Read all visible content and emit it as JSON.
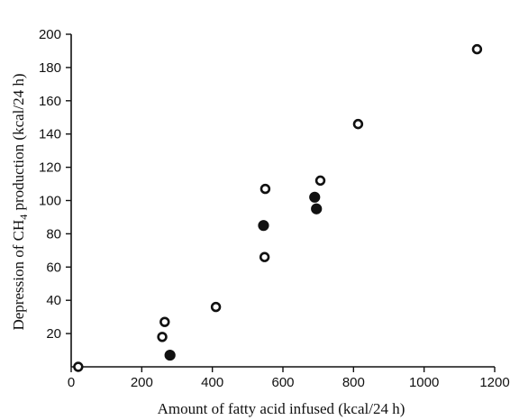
{
  "chart_data": {
    "type": "scatter",
    "title": "",
    "xlabel": "Amount of fatty acid infused (kcal/24 h)",
    "ylabel_parts": [
      "Depression of CH",
      "4",
      " production (kcal/24 h)"
    ],
    "xlim": [
      0,
      1200
    ],
    "ylim": [
      0,
      200
    ],
    "x_ticks": [
      0,
      200,
      400,
      600,
      800,
      1000,
      1200
    ],
    "y_ticks": [
      20,
      40,
      60,
      80,
      100,
      120,
      140,
      160,
      180,
      200
    ],
    "grid": false,
    "series": [
      {
        "marker": "open-circle",
        "points": [
          {
            "x": 20,
            "y": 0
          },
          {
            "x": 258,
            "y": 18
          },
          {
            "x": 265,
            "y": 27
          },
          {
            "x": 410,
            "y": 36
          },
          {
            "x": 548,
            "y": 66
          },
          {
            "x": 550,
            "y": 107
          },
          {
            "x": 706,
            "y": 112
          },
          {
            "x": 813,
            "y": 146
          },
          {
            "x": 1150,
            "y": 191
          }
        ]
      },
      {
        "marker": "filled-circle",
        "points": [
          {
            "x": 280,
            "y": 7
          },
          {
            "x": 545,
            "y": 85
          },
          {
            "x": 690,
            "y": 102
          },
          {
            "x": 695,
            "y": 95
          }
        ]
      }
    ]
  }
}
